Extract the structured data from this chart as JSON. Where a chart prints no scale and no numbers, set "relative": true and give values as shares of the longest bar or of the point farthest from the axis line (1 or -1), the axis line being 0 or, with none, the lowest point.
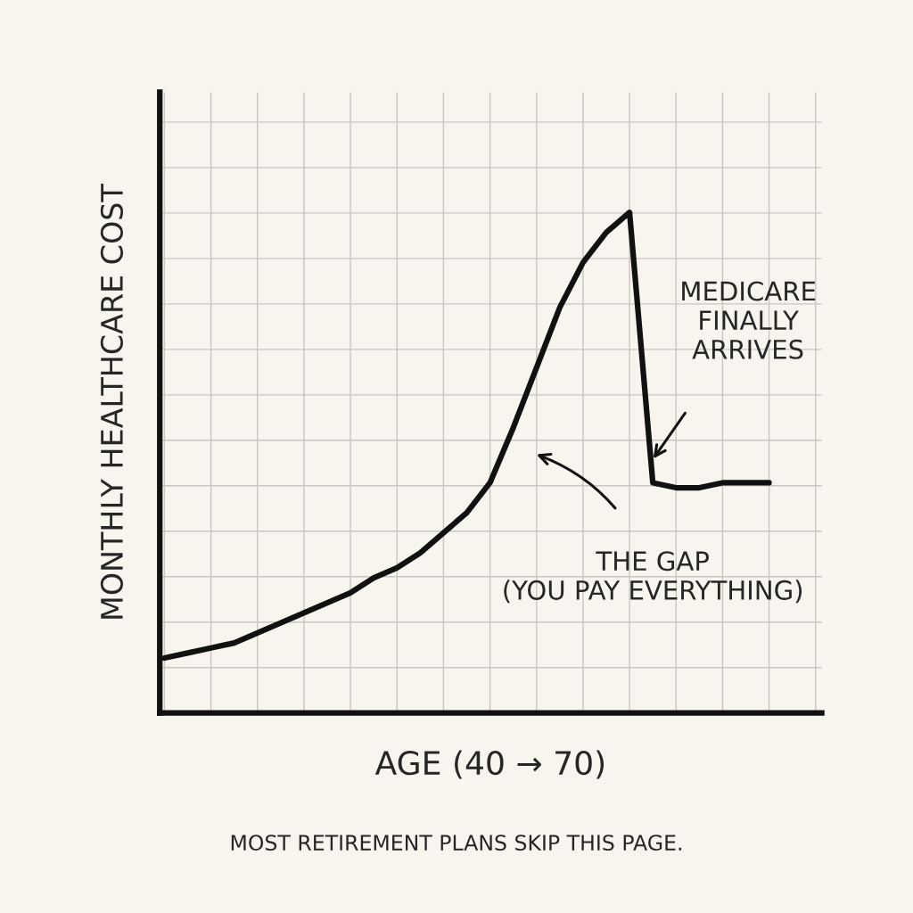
{
  "chart_data": {
    "type": "line",
    "relative": true,
    "xlabel": "AGE (40 → 70)",
    "ylabel": "MONTHLY HEALTHCARE COST",
    "categories": [
      null,
      null,
      null,
      null,
      null,
      null,
      null,
      null,
      null,
      null,
      null,
      null,
      null,
      null,
      null,
      null,
      null,
      null,
      null,
      null,
      null,
      null,
      null,
      null,
      null,
      null,
      null
    ],
    "series": [
      {
        "color": "#111111",
        "values": [
          0.11,
          0.12,
          0.13,
          0.14,
          0.16,
          0.18,
          0.2,
          0.22,
          0.24,
          0.27,
          0.29,
          0.32,
          0.36,
          0.4,
          0.46,
          0.57,
          0.69,
          0.81,
          0.9,
          0.96,
          1.0,
          0.46,
          0.45,
          0.45,
          0.46,
          0.46,
          0.46
        ]
      }
    ],
    "annotations": [
      "MEDICARE\nFINALLY\nARRIVES",
      "THE GAP\n(YOU PAY EVERYTHING)",
      "MOST RETIREMENT PLANS SKIP THIS PAGE."
    ],
    "grid": true,
    "marker": "none",
    "line_style": "solid"
  }
}
